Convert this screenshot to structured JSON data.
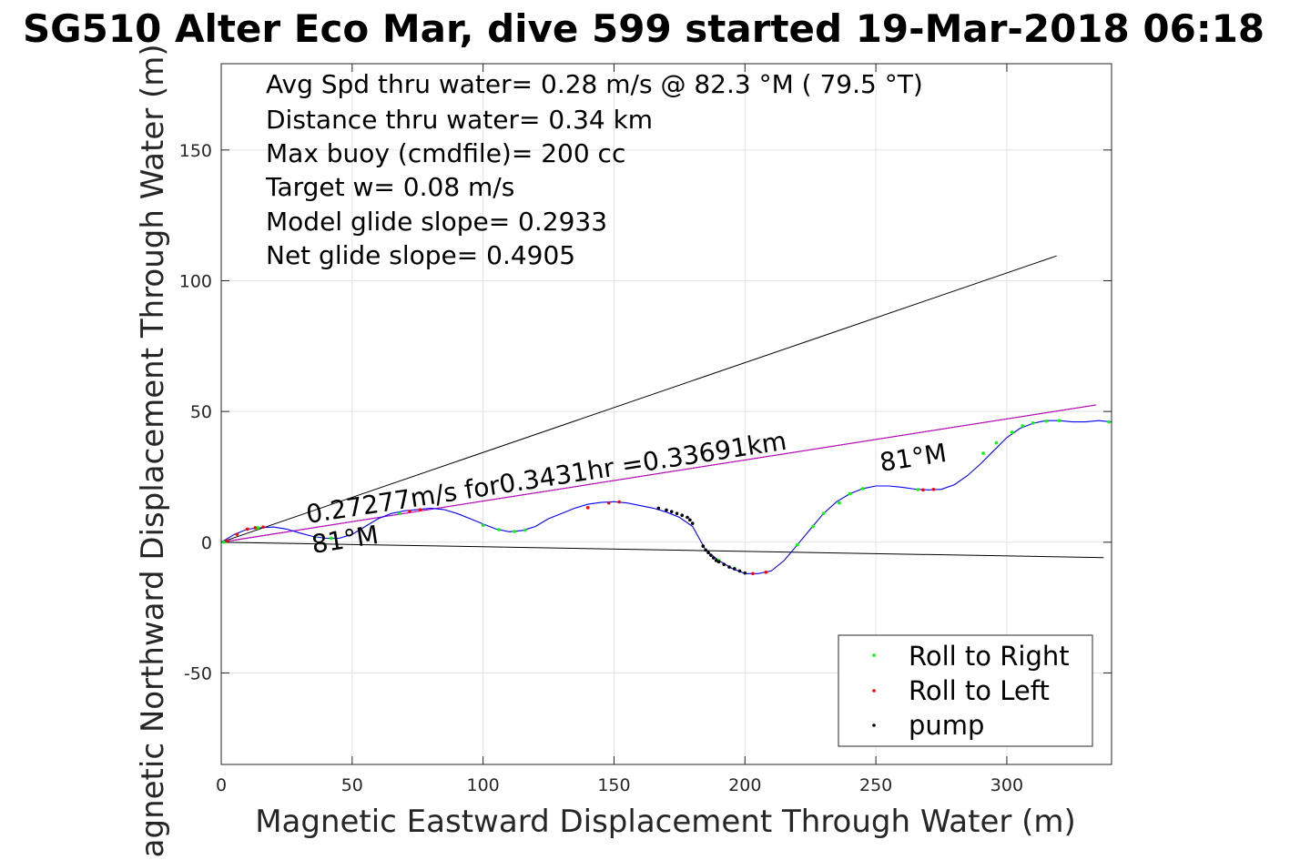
{
  "chart_data": {
    "type": "scatter",
    "title": "SG510 Alter Eco Mar, dive 599 started 19-Mar-2018 06:18",
    "xlabel": "Magnetic Eastward Displacement Through Water (m)",
    "ylabel": "Magnetic Northward Displacement Through Water (m)",
    "xlim": [
      0,
      340
    ],
    "ylim": [
      -85,
      183
    ],
    "xticks": [
      0,
      50,
      100,
      150,
      200,
      250,
      300
    ],
    "yticks": [
      -50,
      0,
      50,
      100,
      150
    ],
    "grid": true,
    "legend_position": "bottom-right",
    "legend": [
      {
        "label": "Roll to Right",
        "color": "#00ff00"
      },
      {
        "label": "Roll to Left",
        "color": "#ff0000"
      },
      {
        "label": "pump",
        "color": "#000000"
      }
    ],
    "annotations": [
      "Avg Spd thru water=  0.28 m/s @  82.3 °M ( 79.5 °T)",
      "Distance thru water=  0.34 km",
      "Max buoy (cmdfile)= 200 cc",
      "Target w= 0.08 m/s",
      "Model glide slope= 0.2933",
      "Net glide slope= 0.4905"
    ],
    "speed_label": "0.27277m/s for0.3431hr =0.33691km",
    "heading_label_start": "81°M",
    "heading_label_end": "81°M",
    "track": {
      "x": [
        0,
        5,
        10,
        15,
        20,
        25,
        30,
        35,
        40,
        45,
        50,
        55,
        60,
        65,
        70,
        75,
        80,
        85,
        90,
        95,
        100,
        105,
        110,
        115,
        120,
        125,
        130,
        135,
        140,
        145,
        150,
        155,
        160,
        165,
        170,
        175,
        180,
        185,
        190,
        195,
        200,
        205,
        210,
        215,
        220,
        225,
        230,
        235,
        240,
        245,
        250,
        255,
        260,
        265,
        270,
        275,
        280,
        285,
        290,
        295,
        300,
        305,
        310,
        315,
        320,
        325,
        330,
        335,
        340
      ],
      "y": [
        0,
        3,
        5,
        5.5,
        5.8,
        5,
        3.5,
        2.2,
        1.5,
        1.5,
        3,
        6,
        9,
        11,
        12,
        12.5,
        13,
        12.5,
        11,
        9,
        7,
        5,
        4,
        4.5,
        6,
        9,
        11,
        13,
        14.5,
        15.2,
        15.5,
        15,
        14,
        13,
        11.5,
        9.5,
        6,
        -3,
        -7,
        -10,
        -12,
        -12,
        -11,
        -7,
        -1,
        5,
        11,
        15.5,
        18.5,
        20.5,
        21.5,
        21.5,
        21,
        20.3,
        20,
        20.2,
        22,
        25.5,
        30,
        35,
        40,
        43.5,
        45.5,
        46.5,
        46.5,
        46,
        46,
        46.5,
        46
      ]
    },
    "roll_right_points": {
      "x": [
        1,
        14,
        36,
        42,
        68,
        100,
        106,
        112,
        116,
        152,
        185,
        190,
        196,
        220,
        226,
        230,
        236,
        240,
        245,
        266,
        291,
        296,
        302,
        306,
        310,
        315,
        320,
        339
      ],
      "y": [
        0,
        5.5,
        2,
        1.5,
        11,
        6.5,
        4.8,
        4.1,
        4.6,
        15.4,
        -3,
        -7,
        -10,
        -1,
        6,
        11,
        15,
        18.5,
        20.5,
        20.1,
        34,
        38,
        42,
        44.5,
        45.6,
        46.3,
        46.5,
        46
      ]
    },
    "roll_left_points": {
      "x": [
        2,
        6,
        10,
        13,
        16,
        72,
        76,
        140,
        148,
        152,
        203,
        208,
        268,
        272
      ],
      "y": [
        0.5,
        3,
        5,
        5.5,
        5.8,
        11.8,
        12.4,
        13.2,
        15,
        15.4,
        -12,
        -11.5,
        20,
        20.2
      ]
    },
    "pump_points": {
      "x": [
        167,
        170,
        172,
        174,
        176,
        178,
        179,
        180,
        184,
        185,
        186,
        187,
        188,
        189,
        190,
        192,
        194,
        196,
        198,
        200
      ],
      "y": [
        13,
        12.3,
        11.7,
        11,
        10.3,
        9.5,
        8.5,
        7.2,
        -1.5,
        -3,
        -4,
        -5,
        -6,
        -7,
        -7.5,
        -8.5,
        -9.5,
        -10.2,
        -11,
        -11.8
      ]
    },
    "guide_lines": [
      {
        "name": "upper envelope",
        "color": "#000000",
        "x": [
          0,
          319
        ],
        "y": [
          0,
          109.5
        ]
      },
      {
        "name": "net track",
        "color": "#000000",
        "x": [
          0,
          334
        ],
        "y": [
          0,
          52.5
        ]
      },
      {
        "name": "net track highlight",
        "color": "#cc00cc",
        "x": [
          0,
          334
        ],
        "y": [
          0,
          52.5
        ]
      },
      {
        "name": "lower envelope",
        "color": "#000000",
        "x": [
          0,
          337
        ],
        "y": [
          0,
          -5.9
        ]
      }
    ]
  }
}
